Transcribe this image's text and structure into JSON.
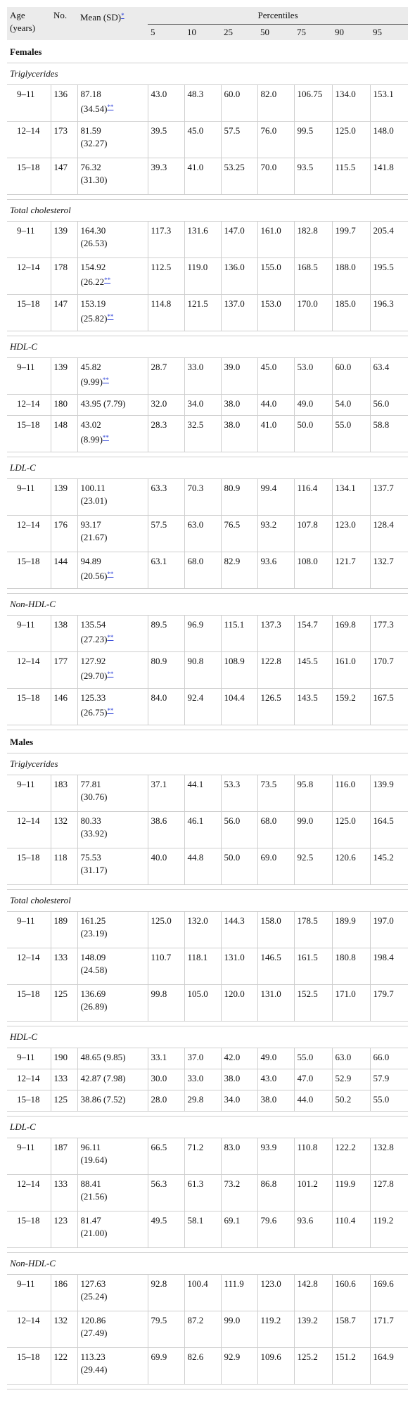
{
  "header": {
    "age": "Age (years)",
    "no": "No.",
    "mean": "Mean (SD)",
    "mean_footnote": "*",
    "percentiles": "Percentiles",
    "pct_cols": [
      "5",
      "10",
      "25",
      "50",
      "75",
      "90",
      "95"
    ]
  },
  "groups": [
    {
      "label": "Females",
      "sections": [
        {
          "label": "Triglycerides",
          "rows": [
            {
              "age": "9–11",
              "n": "136",
              "mean": "87.18",
              "sd": "(34.54)",
              "fn": "**",
              "p": [
                "43.0",
                "48.3",
                "60.0",
                "82.0",
                "106.75",
                "134.0",
                "153.1"
              ]
            },
            {
              "age": "12–14",
              "n": "173",
              "mean": "81.59",
              "sd": "(32.27)",
              "fn": "",
              "p": [
                "39.5",
                "45.0",
                "57.5",
                "76.0",
                "99.5",
                "125.0",
                "148.0"
              ]
            },
            {
              "age": "15–18",
              "n": "147",
              "mean": "76.32",
              "sd": "(31.30)",
              "fn": "",
              "p": [
                "39.3",
                "41.0",
                "53.25",
                "70.0",
                "93.5",
                "115.5",
                "141.8"
              ]
            }
          ]
        },
        {
          "label": "Total cholesterol",
          "rows": [
            {
              "age": "9–11",
              "n": "139",
              "mean": "164.30",
              "sd": "(26.53)",
              "fn": "",
              "p": [
                "117.3",
                "131.6",
                "147.0",
                "161.0",
                "182.8",
                "199.7",
                "205.4"
              ]
            },
            {
              "age": "12–14",
              "n": "178",
              "mean": "154.92",
              "sd": "(26.22",
              "fn": "**",
              "p": [
                "112.5",
                "119.0",
                "136.0",
                "155.0",
                "168.5",
                "188.0",
                "195.5"
              ]
            },
            {
              "age": "15–18",
              "n": "147",
              "mean": "153.19",
              "sd": "(25.82)",
              "fn": "**",
              "p": [
                "114.8",
                "121.5",
                "137.0",
                "153.0",
                "170.0",
                "185.0",
                "196.3"
              ]
            }
          ]
        },
        {
          "label": "HDL-C",
          "rows": [
            {
              "age": "9–11",
              "n": "139",
              "mean": "45.82",
              "sd": "(9.99)",
              "fn": "**",
              "p": [
                "28.7",
                "33.0",
                "39.0",
                "45.0",
                "53.0",
                "60.0",
                "63.4"
              ]
            },
            {
              "age": "12–14",
              "n": "180",
              "mean": "43.95 (7.79)",
              "sd": "",
              "fn": "",
              "p": [
                "32.0",
                "34.0",
                "38.0",
                "44.0",
                "49.0",
                "54.0",
                "56.0"
              ]
            },
            {
              "age": "15–18",
              "n": "148",
              "mean": "43.02",
              "sd": "(8.99)",
              "fn": "**",
              "p": [
                "28.3",
                "32.5",
                "38.0",
                "41.0",
                "50.0",
                "55.0",
                "58.8"
              ]
            }
          ]
        },
        {
          "label": "LDL-C",
          "rows": [
            {
              "age": "9–11",
              "n": "139",
              "mean": "100.11",
              "sd": "(23.01)",
              "fn": "",
              "p": [
                "63.3",
                "70.3",
                "80.9",
                "99.4",
                "116.4",
                "134.1",
                "137.7"
              ]
            },
            {
              "age": "12–14",
              "n": "176",
              "mean": "93.17",
              "sd": "(21.67)",
              "fn": "",
              "p": [
                "57.5",
                "63.0",
                "76.5",
                "93.2",
                "107.8",
                "123.0",
                "128.4"
              ]
            },
            {
              "age": "15–18",
              "n": "144",
              "mean": "94.89",
              "sd": "(20.56)",
              "fn": "**",
              "p": [
                "63.1",
                "68.0",
                "82.9",
                "93.6",
                "108.0",
                "121.7",
                "132.7"
              ]
            }
          ]
        },
        {
          "label": "Non-HDL-C",
          "rows": [
            {
              "age": "9–11",
              "n": "138",
              "mean": "135.54",
              "sd": "(27.23)",
              "fn": "**",
              "p": [
                "89.5",
                "96.9",
                "115.1",
                "137.3",
                "154.7",
                "169.8",
                "177.3"
              ]
            },
            {
              "age": "12–14",
              "n": "177",
              "mean": "127.92",
              "sd": "(29.70)",
              "fn": "**",
              "p": [
                "80.9",
                "90.8",
                "108.9",
                "122.8",
                "145.5",
                "161.0",
                "170.7"
              ]
            },
            {
              "age": "15–18",
              "n": "146",
              "mean": "125.33",
              "sd": "(26.75)",
              "fn": "**",
              "p": [
                "84.0",
                "92.4",
                "104.4",
                "126.5",
                "143.5",
                "159.2",
                "167.5"
              ]
            }
          ]
        }
      ]
    },
    {
      "label": "Males",
      "sections": [
        {
          "label": "Triglycerides",
          "rows": [
            {
              "age": "9–11",
              "n": "183",
              "mean": "77.81",
              "sd": "(30.76)",
              "fn": "",
              "p": [
                "37.1",
                "44.1",
                "53.3",
                "73.5",
                "95.8",
                "116.0",
                "139.9"
              ]
            },
            {
              "age": "12–14",
              "n": "132",
              "mean": "80.33",
              "sd": "(33.92)",
              "fn": "",
              "p": [
                "38.6",
                "46.1",
                "56.0",
                "68.0",
                "99.0",
                "125.0",
                "164.5"
              ]
            },
            {
              "age": "15–18",
              "n": "118",
              "mean": "75.53",
              "sd": "(31.17)",
              "fn": "",
              "p": [
                "40.0",
                "44.8",
                "50.0",
                "69.0",
                "92.5",
                "120.6",
                "145.2"
              ]
            }
          ]
        },
        {
          "label": "Total cholesterol",
          "rows": [
            {
              "age": "9–11",
              "n": "189",
              "mean": "161.25",
              "sd": "(23.19)",
              "fn": "",
              "p": [
                "125.0",
                "132.0",
                "144.3",
                "158.0",
                "178.5",
                "189.9",
                "197.0"
              ]
            },
            {
              "age": "12–14",
              "n": "133",
              "mean": "148.09",
              "sd": "(24.58)",
              "fn": "",
              "p": [
                "110.7",
                "118.1",
                "131.0",
                "146.5",
                "161.5",
                "180.8",
                "198.4"
              ]
            },
            {
              "age": "15–18",
              "n": "125",
              "mean": "136.69",
              "sd": "(26.89)",
              "fn": "",
              "p": [
                "99.8",
                "105.0",
                "120.0",
                "131.0",
                "152.5",
                "171.0",
                "179.7"
              ]
            }
          ]
        },
        {
          "label": "HDL-C",
          "rows": [
            {
              "age": "9–11",
              "n": "190",
              "mean": "48.65 (9.85)",
              "sd": "",
              "fn": "",
              "p": [
                "33.1",
                "37.0",
                "42.0",
                "49.0",
                "55.0",
                "63.0",
                "66.0"
              ]
            },
            {
              "age": "12–14",
              "n": "133",
              "mean": "42.87 (7.98)",
              "sd": "",
              "fn": "",
              "p": [
                "30.0",
                "33.0",
                "38.0",
                "43.0",
                "47.0",
                "52.9",
                "57.9"
              ]
            },
            {
              "age": "15–18",
              "n": "125",
              "mean": "38.86 (7.52)",
              "sd": "",
              "fn": "",
              "p": [
                "28.0",
                "29.8",
                "34.0",
                "38.0",
                "44.0",
                "50.2",
                "55.0"
              ]
            }
          ]
        },
        {
          "label": "LDL-C",
          "rows": [
            {
              "age": "9–11",
              "n": "187",
              "mean": "96.11",
              "sd": "(19.64)",
              "fn": "",
              "p": [
                "66.5",
                "71.2",
                "83.0",
                "93.9",
                "110.8",
                "122.2",
                "132.8"
              ]
            },
            {
              "age": "12–14",
              "n": "133",
              "mean": "88.41",
              "sd": "(21.56)",
              "fn": "",
              "p": [
                "56.3",
                "61.3",
                "73.2",
                "86.8",
                "101.2",
                "119.9",
                "127.8"
              ]
            },
            {
              "age": "15–18",
              "n": "123",
              "mean": "81.47",
              "sd": "(21.00)",
              "fn": "",
              "p": [
                "49.5",
                "58.1",
                "69.1",
                "79.6",
                "93.6",
                "110.4",
                "119.2"
              ]
            }
          ]
        },
        {
          "label": "Non-HDL-C",
          "rows": [
            {
              "age": "9–11",
              "n": "186",
              "mean": "127.63",
              "sd": "(25.24)",
              "fn": "",
              "p": [
                "92.8",
                "100.4",
                "111.9",
                "123.0",
                "142.8",
                "160.6",
                "169.6"
              ]
            },
            {
              "age": "12–14",
              "n": "132",
              "mean": "120.86",
              "sd": "(27.49)",
              "fn": "",
              "p": [
                "79.5",
                "87.2",
                "99.0",
                "119.2",
                "139.2",
                "158.7",
                "171.7"
              ]
            },
            {
              "age": "15–18",
              "n": "122",
              "mean": "113.23",
              "sd": "(29.44)",
              "fn": "",
              "p": [
                "69.9",
                "82.6",
                "92.9",
                "109.6",
                "125.2",
                "151.2",
                "164.9"
              ]
            }
          ]
        }
      ]
    }
  ]
}
